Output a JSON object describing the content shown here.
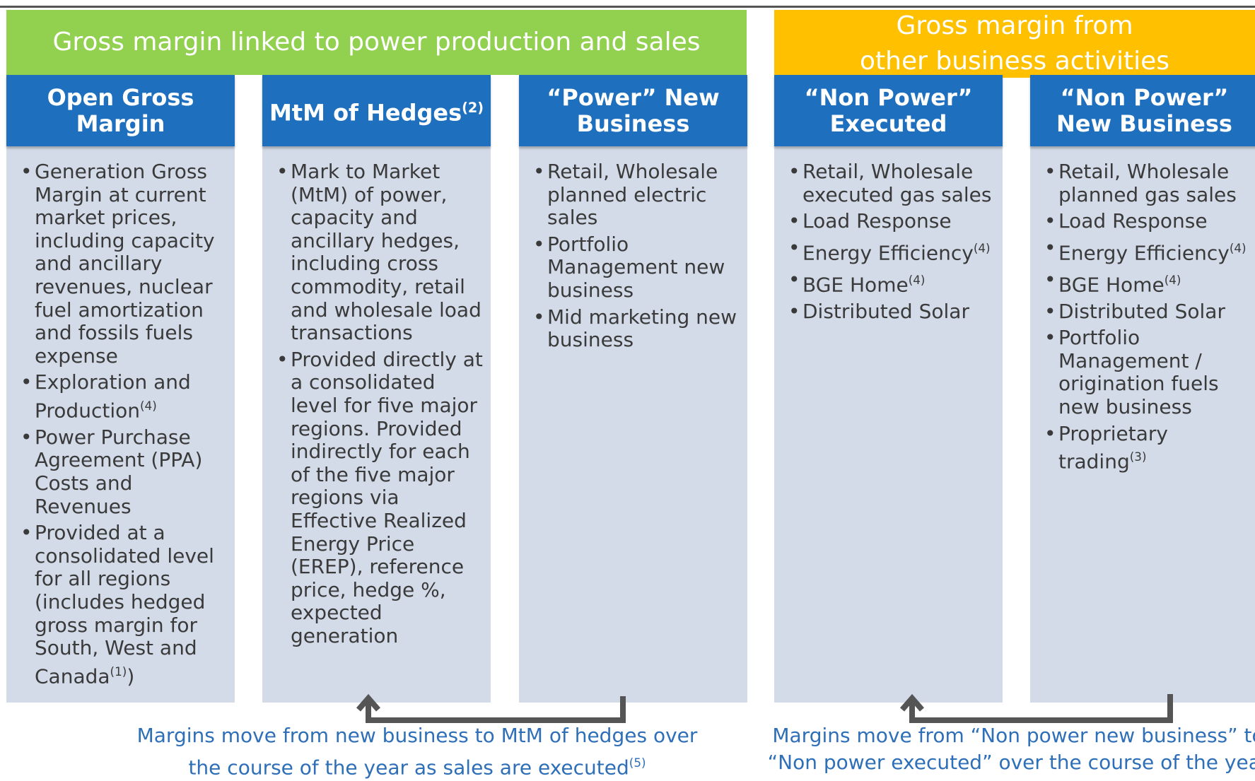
{
  "banners": {
    "power": "Gross margin linked to power production and sales",
    "other": [
      "Gross margin from",
      "other business activities"
    ]
  },
  "columns": [
    {
      "title": "Open Gross Margin",
      "bullets": [
        {
          "text": "Generation Gross Margin at current market prices, including capacity and ancillary revenues, nuclear fuel amortization and fossils fuels expense"
        },
        {
          "text": "Exploration and Production",
          "sup": "(4)"
        },
        {
          "text": "Power Purchase Agreement (PPA) Costs and Revenues"
        },
        {
          "text": "Provided at a consolidated level for all regions (includes hedged gross margin for South, West and Canada",
          "sup": "(1)",
          "after": ")"
        }
      ]
    },
    {
      "title": "MtM of Hedges",
      "sup": "(2)",
      "bullets": [
        {
          "text": "Mark to Market (MtM) of power, capacity and ancillary hedges, including cross commodity, retail and wholesale load transactions"
        },
        {
          "text": "Provided directly at a consolidated level for five major regions. Provided indirectly for each of the five major regions via Effective Realized Energy Price (EREP), reference price, hedge %, expected generation"
        }
      ]
    },
    {
      "title": "“Power” New Business",
      "bullets": [
        {
          "text": "Retail, Wholesale planned electric sales"
        },
        {
          "text": "Portfolio Management new business"
        },
        {
          "text": "Mid marketing new business"
        }
      ]
    },
    {
      "title": "“Non Power” Executed",
      "bullets": [
        {
          "text": "Retail, Wholesale executed gas sales"
        },
        {
          "text": "Load Response"
        },
        {
          "text": "Energy Efficiency",
          "sup": "(4)"
        },
        {
          "text": "BGE Home",
          "sup": "(4)"
        },
        {
          "text": "Distributed Solar"
        }
      ]
    },
    {
      "title": "“Non Power” New Business",
      "bullets": [
        {
          "text": "Retail, Wholesale planned gas sales"
        },
        {
          "text": "Load Response"
        },
        {
          "text": "Energy Efficiency",
          "sup": "(4)"
        },
        {
          "text": "BGE Home",
          "sup": "(4)"
        },
        {
          "text": "Distributed Solar"
        },
        {
          "text": "Portfolio Management / origination fuels new business"
        },
        {
          "text": "Proprietary trading",
          "sup": "(3)"
        }
      ]
    }
  ],
  "captions": [
    {
      "lines": [
        "Margins move from new business to MtM of hedges over",
        "the course of the year as sales are executed"
      ],
      "sup": "(5)"
    },
    {
      "lines": [
        "Margins move from “Non power new business” to",
        "“Non power executed” over the course of the year"
      ]
    }
  ]
}
